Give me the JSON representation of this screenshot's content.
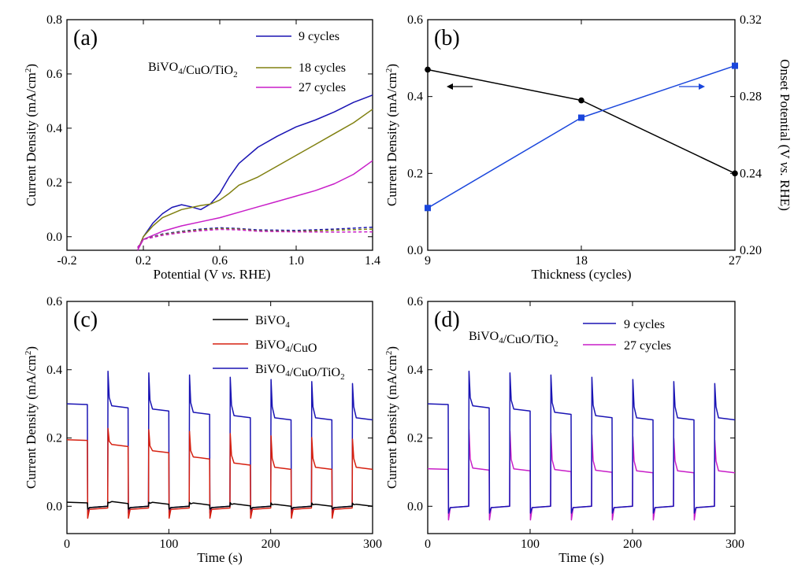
{
  "colors": {
    "black": "#000000",
    "red": "#d62010",
    "blue": "#1a14b4",
    "olive": "#808010",
    "magenta": "#c81ec8",
    "marker_blue": "#1a46dc"
  },
  "chart_data": [
    {
      "panel": "a",
      "label": "(a)",
      "type": "line",
      "xlabel": "Potential (V vs. RHE)",
      "xlabel_parts": [
        "Potential (V ",
        "vs.",
        " RHE)"
      ],
      "ylabel": "Current Density (mA/cm²)",
      "xlim": [
        -0.2,
        1.4
      ],
      "ylim": [
        -0.05,
        0.8
      ],
      "xticks": [
        -0.2,
        0.2,
        0.6,
        1.0,
        1.4
      ],
      "xtick_labels": [
        "-0.2",
        "0.2",
        "0.6",
        "1.0",
        "1.4"
      ],
      "yticks": [
        0.0,
        0.2,
        0.4,
        0.6,
        0.8
      ],
      "ytick_labels": [
        "0.0",
        "0.2",
        "0.4",
        "0.6",
        "0.8"
      ],
      "legend_title": "BiVO4/CuO/TiO2",
      "legend_position": "top-right",
      "series": [
        {
          "name": "9 cycles",
          "color": "blue",
          "style": "solid",
          "x": [
            0.17,
            0.2,
            0.25,
            0.3,
            0.35,
            0.4,
            0.45,
            0.5,
            0.55,
            0.6,
            0.65,
            0.7,
            0.8,
            0.9,
            1.0,
            1.1,
            1.2,
            1.3,
            1.4
          ],
          "y": [
            -0.05,
            0.0,
            0.05,
            0.085,
            0.108,
            0.118,
            0.11,
            0.1,
            0.12,
            0.16,
            0.22,
            0.27,
            0.33,
            0.37,
            0.405,
            0.43,
            0.46,
            0.495,
            0.522
          ]
        },
        {
          "name": "18 cycles",
          "color": "olive",
          "style": "solid",
          "x": [
            0.17,
            0.2,
            0.25,
            0.3,
            0.4,
            0.5,
            0.55,
            0.6,
            0.65,
            0.7,
            0.8,
            0.9,
            1.0,
            1.1,
            1.2,
            1.3,
            1.4
          ],
          "y": [
            -0.05,
            0.0,
            0.04,
            0.07,
            0.1,
            0.115,
            0.12,
            0.135,
            0.16,
            0.19,
            0.22,
            0.26,
            0.3,
            0.34,
            0.38,
            0.42,
            0.47
          ]
        },
        {
          "name": "27 cycles",
          "color": "magenta",
          "style": "solid",
          "x": [
            0.17,
            0.2,
            0.3,
            0.4,
            0.5,
            0.6,
            0.7,
            0.8,
            0.9,
            1.0,
            1.1,
            1.2,
            1.3,
            1.4
          ],
          "y": [
            -0.05,
            -0.01,
            0.02,
            0.04,
            0.055,
            0.07,
            0.09,
            0.11,
            0.13,
            0.15,
            0.17,
            0.195,
            0.23,
            0.28
          ]
        },
        {
          "name": "9 cycles (dark)",
          "color": "blue",
          "style": "dashed",
          "x": [
            0.17,
            0.2,
            0.3,
            0.4,
            0.5,
            0.6,
            0.7,
            0.8,
            1.0,
            1.2,
            1.4
          ],
          "y": [
            -0.04,
            -0.01,
            0.01,
            0.02,
            0.028,
            0.033,
            0.03,
            0.025,
            0.023,
            0.028,
            0.035
          ]
        },
        {
          "name": "18 cycles (dark)",
          "color": "olive",
          "style": "dashed",
          "x": [
            0.17,
            0.2,
            0.3,
            0.4,
            0.5,
            0.6,
            0.7,
            0.8,
            1.0,
            1.2,
            1.4
          ],
          "y": [
            -0.04,
            -0.01,
            0.008,
            0.018,
            0.025,
            0.03,
            0.028,
            0.022,
            0.02,
            0.024,
            0.028
          ]
        },
        {
          "name": "27 cycles (dark)",
          "color": "magenta",
          "style": "dashed",
          "x": [
            0.17,
            0.2,
            0.3,
            0.4,
            0.5,
            0.6,
            0.7,
            0.8,
            1.0,
            1.2,
            1.4
          ],
          "y": [
            -0.04,
            -0.01,
            0.005,
            0.015,
            0.022,
            0.027,
            0.025,
            0.02,
            0.018,
            0.017,
            0.018
          ]
        }
      ],
      "legend_entries": [
        "9  cycles",
        "18 cycles",
        "27 cycles"
      ]
    },
    {
      "panel": "b",
      "label": "(b)",
      "type": "line",
      "xlabel": "Thickness (cycles)",
      "ylabel": "Current Density (mA/cm²)",
      "y2label": "Onset Potential (V vs. RHE)",
      "y2label_parts": [
        "Onset Potential (V ",
        "vs.",
        " RHE)"
      ],
      "xlim": [
        9,
        27
      ],
      "ylim": [
        0.0,
        0.6
      ],
      "y2lim": [
        0.2,
        0.32
      ],
      "xticks": [
        9,
        18,
        27
      ],
      "xtick_labels": [
        "9",
        "18",
        "27"
      ],
      "yticks": [
        0.0,
        0.2,
        0.4,
        0.6
      ],
      "ytick_labels": [
        "0.0",
        "0.2",
        "0.4",
        "0.6"
      ],
      "y2ticks": [
        0.2,
        0.24,
        0.28,
        0.32
      ],
      "y2tick_labels": [
        "0.20",
        "0.24",
        "0.28",
        "0.32"
      ],
      "series": [
        {
          "name": "Current Density",
          "axis": "left",
          "color": "black",
          "marker": "circle",
          "x": [
            9,
            18,
            27
          ],
          "y": [
            0.47,
            0.39,
            0.2
          ]
        },
        {
          "name": "Onset Potential",
          "axis": "right",
          "color": "marker_blue",
          "marker": "square",
          "x": [
            9,
            18,
            27
          ],
          "y": [
            0.222,
            0.269,
            0.296
          ]
        }
      ]
    },
    {
      "panel": "c",
      "label": "(c)",
      "type": "line",
      "xlabel": "Time (s)",
      "ylabel": "Current Density (mA/cm²)",
      "xlim": [
        0,
        300
      ],
      "ylim": [
        -0.08,
        0.6
      ],
      "xticks": [
        0,
        100,
        200,
        300
      ],
      "xtick_labels": [
        "0",
        "100",
        "200",
        "300"
      ],
      "yticks": [
        0.0,
        0.2,
        0.4,
        0.6
      ],
      "ytick_labels": [
        "0.0",
        "0.2",
        "0.4",
        "0.6"
      ],
      "legend_position": "top-right",
      "series": [
        {
          "name": "BiVO4",
          "color": "black",
          "on_start": 0.012,
          "on_end": 0.002,
          "off": 0.0,
          "spike": 0.012,
          "dip": -0.008
        },
        {
          "name": "BiVO4/CuO",
          "color": "red",
          "on_start": 0.195,
          "on_end": 0.11,
          "off": -0.005,
          "spike": 0.23,
          "dip": -0.035
        },
        {
          "name": "BiVO4/CuO/TiO2",
          "color": "blue",
          "on_start": 0.3,
          "on_end": 0.255,
          "off": 0.0,
          "spike": 0.4,
          "dip": -0.02
        }
      ],
      "light_period_s": 40,
      "light_on_first_s": 20
    },
    {
      "panel": "d",
      "label": "(d)",
      "type": "line",
      "xlabel": "Time (s)",
      "ylabel": "Current Density (mA/cm²)",
      "xlim": [
        0,
        300
      ],
      "ylim": [
        -0.08,
        0.6
      ],
      "xticks": [
        0,
        100,
        200,
        300
      ],
      "xtick_labels": [
        "0",
        "100",
        "200",
        "300"
      ],
      "yticks": [
        0.0,
        0.2,
        0.4,
        0.6
      ],
      "ytick_labels": [
        "0.0",
        "0.2",
        "0.4",
        "0.6"
      ],
      "legend_title": "BiVO4/CuO/TiO2",
      "legend_position": "top-right",
      "series": [
        {
          "name": "9 cycles",
          "color": "blue",
          "on_start": 0.3,
          "on_end": 0.255,
          "off": 0.0,
          "spike": 0.4,
          "dip": -0.02
        },
        {
          "name": "27 cycles",
          "color": "magenta",
          "on_start": 0.11,
          "on_end": 0.1,
          "off": 0.0,
          "spike": 0.23,
          "dip": -0.04
        }
      ],
      "light_period_s": 40,
      "light_on_first_s": 20
    }
  ]
}
